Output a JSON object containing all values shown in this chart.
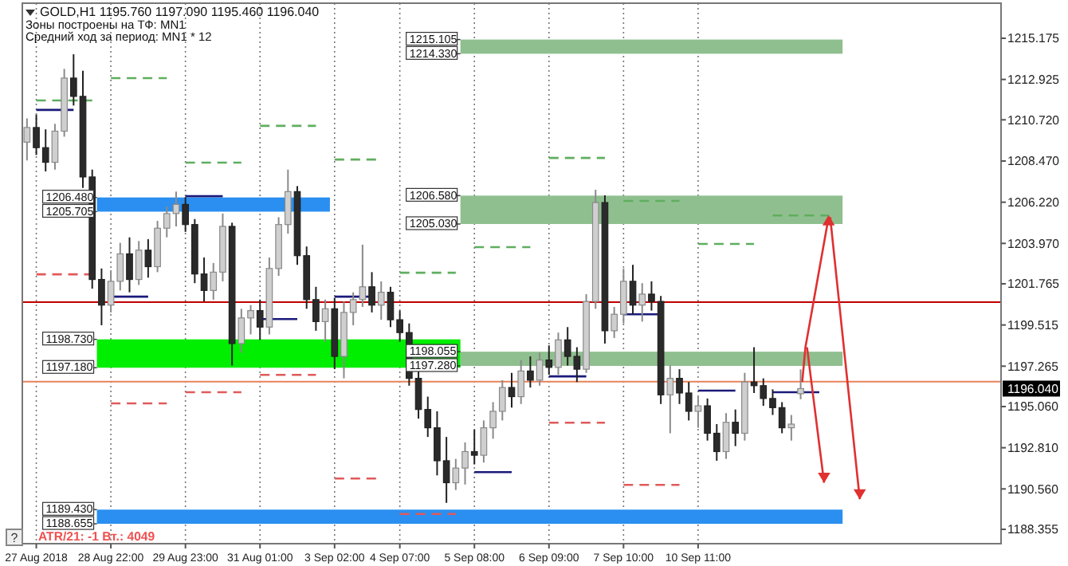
{
  "chart_data": {
    "type": "candlestick",
    "title": "GOLD,H1  1195.760 1197.090 1195.460 1196.040",
    "annotations": [
      "Зоны построены на ТФ: MN1",
      "Средний ход за период: MN1 * 12",
      "ATR/21: -1  Вт.: 4049",
      "?",
      "1215.105",
      "1214.330",
      "1206.580",
      "1205.030",
      "1198.055",
      "1197.280",
      "1206.480",
      "1205.705",
      "1198.730",
      "1197.180",
      "1189.430",
      "1188.655",
      "1196.040"
    ],
    "categories": [
      null,
      "27 Aug 2018",
      null,
      null,
      null,
      null,
      null,
      null,
      null,
      "28 Aug 22:00",
      null,
      null,
      null,
      null,
      null,
      null,
      null,
      "29 Aug 23:00",
      null,
      null,
      null,
      null,
      null,
      null,
      null,
      "31 Aug 01:00",
      null,
      null,
      null,
      null,
      null,
      null,
      null,
      "3 Sep 02:00",
      null,
      null,
      null,
      null,
      null,
      null,
      "4 Sep 07:00",
      null,
      null,
      null,
      null,
      null,
      null,
      null,
      "5 Sep 08:00",
      null,
      null,
      null,
      null,
      null,
      null,
      null,
      "6 Sep 09:00",
      null,
      null,
      null,
      null,
      null,
      null,
      null,
      "7 Sep 10:00",
      null,
      null,
      null,
      null,
      null,
      null,
      null,
      "10 Sep 11:00",
      null,
      null,
      null,
      null,
      null,
      null,
      null,
      null,
      null,
      null,
      null,
      null,
      null,
      null,
      null,
      null,
      null,
      null,
      null,
      null,
      null,
      null,
      null,
      null,
      null,
      null,
      null,
      null,
      null,
      null,
      null,
      null
    ],
    "ohlc": [
      [
        1209.5,
        1210.8,
        1208.5,
        1210.3
      ],
      [
        1210.3,
        1211,
        1208.8,
        1209.2
      ],
      [
        1209.2,
        1210.2,
        1207.9,
        1208.4
      ],
      [
        1208.4,
        1210.5,
        1208,
        1210.1
      ],
      [
        1210.1,
        1213.5,
        1209.8,
        1213
      ],
      [
        1213,
        1214.3,
        1211.5,
        1212
      ],
      [
        1212,
        1213.4,
        1207,
        1207.6
      ],
      [
        1207.6,
        1208,
        1201.5,
        1202
      ],
      [
        1202,
        1202.6,
        1199.5,
        1200.6
      ],
      [
        1200.6,
        1202.5,
        1200.2,
        1201.9
      ],
      [
        1201.9,
        1204,
        1201.4,
        1203.4
      ],
      [
        1203.4,
        1204.3,
        1201.3,
        1202
      ],
      [
        1202,
        1204.1,
        1201.7,
        1203.6
      ],
      [
        1203.6,
        1204.2,
        1202.1,
        1202.7
      ],
      [
        1202.7,
        1205.2,
        1202.4,
        1204.8
      ],
      [
        1204.8,
        1206,
        1204.3,
        1205.6
      ],
      [
        1205.6,
        1206.8,
        1204.9,
        1206.1
      ],
      [
        1206.1,
        1206.5,
        1204.6,
        1205
      ],
      [
        1205,
        1205.3,
        1201.8,
        1202.3
      ],
      [
        1202.3,
        1203.2,
        1200.8,
        1201.4
      ],
      [
        1201.4,
        1202.9,
        1200.9,
        1202.4
      ],
      [
        1202.4,
        1205.6,
        1201.9,
        1204.9
      ],
      [
        1204.9,
        1205.1,
        1197.3,
        1198.5
      ],
      [
        1198.5,
        1200.4,
        1198,
        1199.9
      ],
      [
        1199.9,
        1200.6,
        1199,
        1200.3
      ],
      [
        1200.3,
        1200.9,
        1198.7,
        1199.4
      ],
      [
        1199.4,
        1203.2,
        1199,
        1202.6
      ],
      [
        1202.6,
        1205.4,
        1202.2,
        1205
      ],
      [
        1205,
        1208,
        1204.5,
        1206.8
      ],
      [
        1206.8,
        1207.1,
        1202.8,
        1203.3
      ],
      [
        1203.3,
        1203.8,
        1200.4,
        1200.9
      ],
      [
        1200.9,
        1201.6,
        1199.2,
        1199.7
      ],
      [
        1199.7,
        1200.9,
        1198.6,
        1200.4
      ],
      [
        1200.4,
        1201,
        1197.1,
        1197.8
      ],
      [
        1197.8,
        1200.8,
        1196.6,
        1200.2
      ],
      [
        1200.2,
        1201.3,
        1199.5,
        1200.9
      ],
      [
        1200.9,
        1203.9,
        1200.5,
        1201.6
      ],
      [
        1201.6,
        1202.4,
        1200.2,
        1200.6
      ],
      [
        1200.6,
        1201.9,
        1199.8,
        1201.3
      ],
      [
        1201.3,
        1201.6,
        1199.4,
        1199.8
      ],
      [
        1199.8,
        1200.3,
        1198.6,
        1199.1
      ],
      [
        1199.1,
        1199.6,
        1196.2,
        1196.6
      ],
      [
        1196.6,
        1197,
        1194.4,
        1194.9
      ],
      [
        1194.9,
        1195.6,
        1193.4,
        1193.9
      ],
      [
        1193.9,
        1194.8,
        1191.3,
        1192.1
      ],
      [
        1192.1,
        1193.4,
        1189.8,
        1190.9
      ],
      [
        1190.9,
        1192.2,
        1190.5,
        1191.7
      ],
      [
        1191.7,
        1193.1,
        1190.8,
        1192.6
      ],
      [
        1192.6,
        1193.8,
        1191.9,
        1192.4
      ],
      [
        1192.4,
        1194.3,
        1192,
        1193.9
      ],
      [
        1193.9,
        1195.3,
        1193.3,
        1194.8
      ],
      [
        1194.8,
        1196.5,
        1194.3,
        1196.1
      ],
      [
        1196.1,
        1196.9,
        1195,
        1195.6
      ],
      [
        1195.6,
        1197.6,
        1195.2,
        1197
      ],
      [
        1197,
        1197.8,
        1196.1,
        1196.5
      ],
      [
        1196.5,
        1198,
        1196.2,
        1197.6
      ],
      [
        1197.6,
        1198.4,
        1196.8,
        1197.2
      ],
      [
        1197.2,
        1199.1,
        1196.8,
        1198.7
      ],
      [
        1198.7,
        1199.4,
        1197.3,
        1197.8
      ],
      [
        1197.8,
        1198.3,
        1196.4,
        1197.1
      ],
      [
        1197.1,
        1201.2,
        1196.9,
        1200.8
      ],
      [
        1200.8,
        1206.9,
        1200.4,
        1206.2
      ],
      [
        1206.2,
        1206.6,
        1198.5,
        1199.2
      ],
      [
        1199.2,
        1200.5,
        1198.8,
        1200.1
      ],
      [
        1200.1,
        1202.6,
        1199.6,
        1201.9
      ],
      [
        1201.9,
        1202.8,
        1200.1,
        1200.6
      ],
      [
        1200.6,
        1201.8,
        1199.7,
        1201.2
      ],
      [
        1201.2,
        1201.9,
        1200.3,
        1200.8
      ],
      [
        1200.8,
        1201.1,
        1195.2,
        1195.7
      ],
      [
        1195.7,
        1197.3,
        1193.6,
        1196.6
      ],
      [
        1196.6,
        1197.1,
        1195.2,
        1195.8
      ],
      [
        1195.8,
        1196.4,
        1194.3,
        1194.8
      ],
      [
        1194.8,
        1195.6,
        1193.9,
        1195.1
      ],
      [
        1195.1,
        1195.5,
        1193.2,
        1193.6
      ],
      [
        1193.6,
        1194.1,
        1192.1,
        1192.6
      ],
      [
        1192.6,
        1194.7,
        1192.2,
        1194.2
      ],
      [
        1194.2,
        1194.9,
        1192.9,
        1193.6
      ],
      [
        1193.6,
        1196.9,
        1193.2,
        1196.4
      ],
      [
        1196.4,
        1198.3,
        1195.8,
        1196.2
      ],
      [
        1196.2,
        1196.6,
        1195.1,
        1195.5
      ],
      [
        1195.5,
        1196,
        1194.6,
        1195
      ],
      [
        1195,
        1195.3,
        1193.6,
        1193.9
      ],
      [
        1193.9,
        1194.6,
        1193.2,
        1194.1
      ],
      [
        1195.76,
        1197.09,
        1195.46,
        1196.04
      ],
      null,
      null,
      null,
      null,
      null,
      null,
      null,
      null,
      null,
      null,
      null,
      null,
      null,
      null,
      null,
      null,
      null,
      null,
      null,
      null,
      null
    ],
    "series": [
      {
        "type": "line",
        "color": "#5fae5f",
        "line_style": "dashed",
        "values": [
          null,
          1211.78,
          1211.78,
          1211.78,
          1211.78,
          1211.78,
          1211.78,
          1211.78,
          null,
          1213,
          1213,
          1213,
          1213,
          1213,
          1213,
          1213,
          null,
          1208.38,
          1208.38,
          1208.38,
          1208.38,
          1208.38,
          1208.38,
          1208.38,
          null,
          1210.39,
          1210.39,
          1210.39,
          1210.39,
          1210.39,
          1210.39,
          1210.39,
          null,
          1208.55,
          1208.55,
          1208.55,
          1208.55,
          1208.55,
          1208.55,
          null,
          1202.37,
          1202.37,
          1202.37,
          1202.37,
          1202.37,
          1202.37,
          1202.37,
          null,
          1203.77,
          1203.77,
          1203.77,
          1203.77,
          1203.77,
          1203.77,
          1203.77,
          null,
          1208.64,
          1208.64,
          1208.64,
          1208.64,
          1208.64,
          1208.64,
          1208.64,
          null,
          1206.29,
          1206.29,
          1206.29,
          1206.29,
          1206.29,
          1206.29,
          1206.29,
          null,
          1203.94,
          1203.94,
          1203.94,
          1203.94,
          1203.94,
          1203.94,
          1203.94,
          null,
          1205.5,
          1205.5,
          1205.5,
          1205.5,
          1205.5,
          1205.5,
          1205.5,
          null,
          null,
          null,
          null,
          null,
          null,
          null,
          null,
          null,
          null,
          null,
          null,
          null,
          null,
          null,
          null,
          null,
          null
        ]
      },
      {
        "type": "line",
        "color": "#e05a5a",
        "line_style": "dashed",
        "values": [
          null,
          1202.28,
          1202.28,
          1202.28,
          1202.28,
          1202.28,
          1202.28,
          1202.28,
          null,
          1195.23,
          1195.23,
          1195.23,
          1195.23,
          1195.23,
          1195.23,
          1195.23,
          null,
          1195.84,
          1195.84,
          1195.84,
          1195.84,
          1195.84,
          1195.84,
          1195.84,
          null,
          1196.79,
          1196.79,
          1196.79,
          1196.79,
          1196.79,
          1196.79,
          1196.79,
          null,
          1191.13,
          1191.13,
          1191.13,
          1191.13,
          1191.13,
          1191.13,
          null,
          1189.19,
          1189.19,
          1189.19,
          1189.19,
          1189.19,
          1189.19,
          1189.19,
          null,
          null,
          null,
          null,
          null,
          null,
          null,
          null,
          null,
          1194.18,
          1194.18,
          1194.18,
          1194.18,
          1194.18,
          1194.18,
          1194.18,
          null,
          1190.78,
          1190.78,
          1190.78,
          1190.78,
          1190.78,
          1190.78,
          1190.78,
          null,
          null,
          null,
          null,
          null,
          null,
          null,
          null,
          null,
          null,
          null,
          null,
          null,
          null,
          null,
          null,
          null,
          null,
          null,
          null,
          null,
          null,
          null,
          null,
          null,
          null,
          null,
          null,
          null,
          null,
          null,
          null,
          null,
          null
        ]
      },
      {
        "type": "line",
        "color": "#1a1a7a",
        "line_style": "solid",
        "values": [
          null,
          1211.26,
          1211.26,
          1211.26,
          1211.26,
          1211.26,
          null,
          null,
          null,
          1201.06,
          1201.06,
          1201.06,
          1201.06,
          1201.06,
          null,
          null,
          null,
          1206.55,
          1206.55,
          1206.55,
          1206.55,
          1206.55,
          null,
          null,
          null,
          1199.84,
          1199.84,
          1199.84,
          1199.84,
          1199.84,
          null,
          null,
          null,
          1201.06,
          1201.06,
          1201.06,
          1201.06,
          1201.06,
          null,
          null,
          null,
          null,
          null,
          null,
          null,
          null,
          null,
          null,
          1191.48,
          1191.48,
          1191.48,
          1191.48,
          1191.48,
          null,
          null,
          null,
          1196.71,
          1196.71,
          1196.71,
          1196.71,
          1196.71,
          null,
          null,
          null,
          1200.1,
          1200.1,
          1200.1,
          1200.1,
          1200.1,
          null,
          null,
          null,
          1195.93,
          1195.93,
          1195.93,
          1195.93,
          1195.93,
          null,
          null,
          null,
          1195.84,
          1195.84,
          1195.84,
          1195.84,
          1195.84,
          1195.84,
          null,
          null,
          null,
          null,
          null,
          null,
          null,
          null,
          null,
          null,
          null,
          null,
          null,
          null,
          null,
          null,
          null,
          null,
          null
        ]
      }
    ],
    "bands": [
      {
        "axis": "y",
        "from": 1214.33,
        "to": 1215.105,
        "color": "#8fbf8f"
      },
      {
        "axis": "y",
        "from": 1205.03,
        "to": 1206.58,
        "color": "#8fbf8f"
      },
      {
        "axis": "y",
        "from": 1197.28,
        "to": 1198.055,
        "color": "#8fbf8f"
      },
      {
        "axis": "y",
        "from": 1205.705,
        "to": 1206.48,
        "color": "#2a8ff0"
      },
      {
        "axis": "y",
        "from": 1197.18,
        "to": 1198.73,
        "color": "#00ee00"
      },
      {
        "axis": "y",
        "from": 1188.655,
        "to": 1189.43,
        "color": "#2a8ff0"
      }
    ],
    "ref_lines": [
      {
        "axis": "y",
        "value": 1200.76,
        "color": "#c00000"
      },
      {
        "axis": "y",
        "value": 1196.42,
        "color": "#e8825a"
      }
    ],
    "ylim": [
      1187.57,
      1217.09
    ],
    "yticks": [
      {
        "value": 1188.355,
        "label": "1188.355"
      },
      {
        "value": 1190.56,
        "label": "1190.560"
      },
      {
        "value": 1192.81,
        "label": "1192.810"
      },
      {
        "value": 1195.06,
        "label": "1195.060"
      },
      {
        "value": 1197.265,
        "label": "1197.265"
      },
      {
        "value": 1199.515,
        "label": "1199.515"
      },
      {
        "value": 1201.765,
        "label": "1201.765"
      },
      {
        "value": 1203.97,
        "label": "1203.970"
      },
      {
        "value": 1206.22,
        "label": "1206.220"
      },
      {
        "value": 1208.47,
        "label": "1208.470"
      },
      {
        "value": 1210.72,
        "label": "1210.720"
      },
      {
        "value": 1212.925,
        "label": "1212.925"
      },
      {
        "value": 1215.175,
        "label": "1215.175"
      }
    ],
    "grid": "x"
  }
}
